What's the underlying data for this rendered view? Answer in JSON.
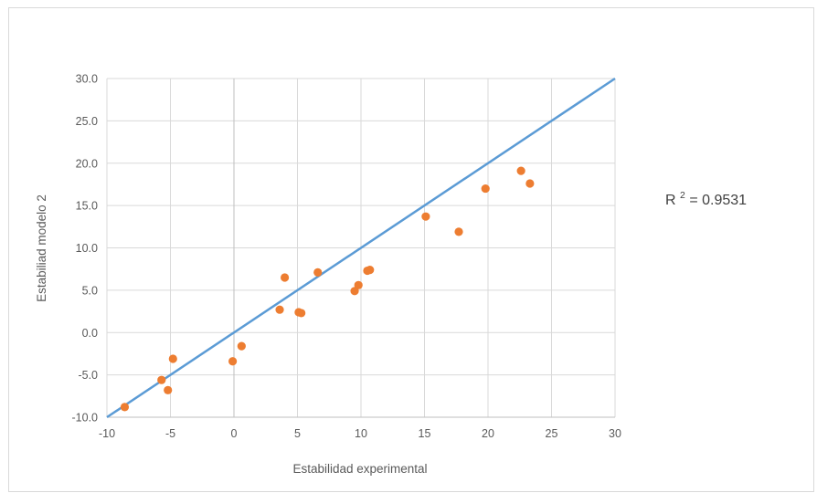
{
  "chart_data": {
    "type": "scatter",
    "xlabel": "Estabilidad experimental",
    "ylabel": "Estabiliad modelo 2",
    "xlim": [
      -10,
      30
    ],
    "ylim": [
      -10,
      30
    ],
    "x_ticks": [
      "-10",
      "-5",
      "0",
      "5",
      "10",
      "15",
      "20",
      "25",
      "30"
    ],
    "y_ticks": [
      "-10.0",
      "-5.0",
      "0.0",
      "5.0",
      "10.0",
      "15.0",
      "20.0",
      "25.0",
      "30.0"
    ],
    "grid": true,
    "annotation": {
      "base": "R",
      "superscript": "2",
      "rest": " = 0.9531"
    },
    "reference_line": {
      "type": "identity",
      "from": [
        -10,
        -10
      ],
      "to": [
        30,
        30
      ],
      "color": "#5b9bd5"
    },
    "series": [
      {
        "color": "#ed7d31",
        "points": [
          {
            "x": -8.6,
            "y": -8.8
          },
          {
            "x": -5.7,
            "y": -5.6
          },
          {
            "x": -5.2,
            "y": -6.8
          },
          {
            "x": -4.8,
            "y": -3.1
          },
          {
            "x": -0.1,
            "y": -3.4
          },
          {
            "x": 0.6,
            "y": -1.6
          },
          {
            "x": 3.6,
            "y": 2.7
          },
          {
            "x": 4.0,
            "y": 6.5
          },
          {
            "x": 5.1,
            "y": 2.4
          },
          {
            "x": 5.3,
            "y": 2.3
          },
          {
            "x": 6.6,
            "y": 7.1
          },
          {
            "x": 9.5,
            "y": 4.9
          },
          {
            "x": 9.8,
            "y": 5.6
          },
          {
            "x": 10.5,
            "y": 7.3
          },
          {
            "x": 10.7,
            "y": 7.4
          },
          {
            "x": 15.1,
            "y": 13.7
          },
          {
            "x": 17.7,
            "y": 11.9
          },
          {
            "x": 19.8,
            "y": 17.0
          },
          {
            "x": 22.6,
            "y": 19.1
          },
          {
            "x": 23.3,
            "y": 17.6
          }
        ]
      }
    ]
  }
}
